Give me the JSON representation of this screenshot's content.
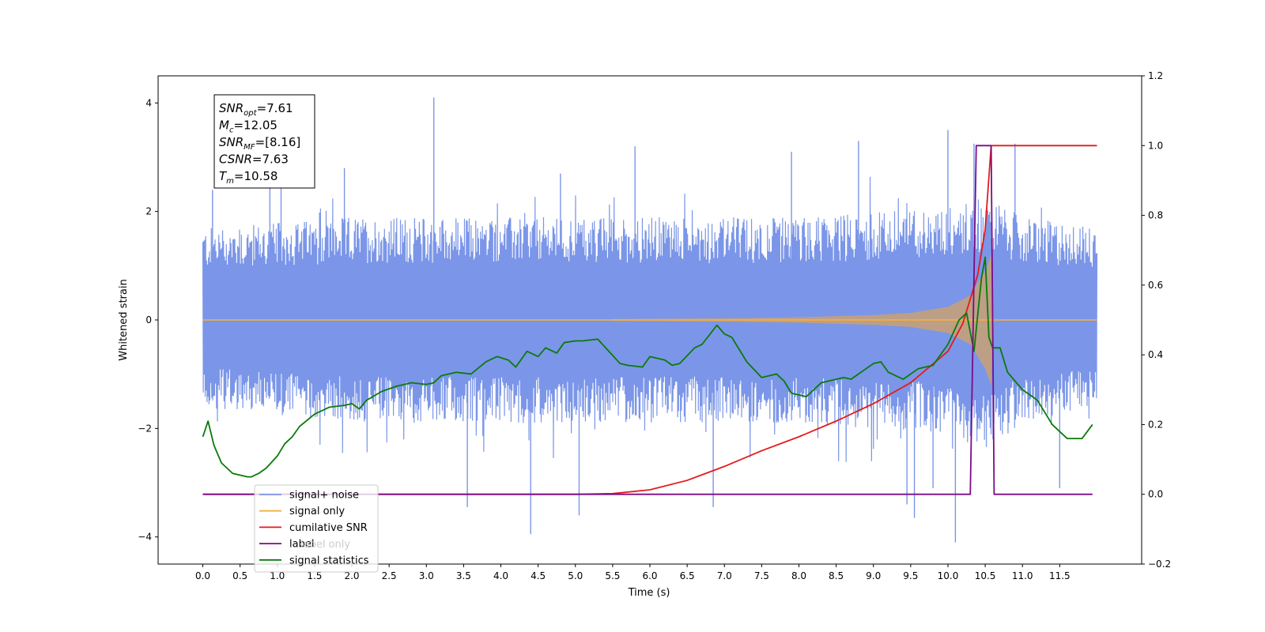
{
  "chart_data": {
    "type": "line",
    "xlabel": "Time (s)",
    "ylabel": "Whitened strain",
    "xlim": [
      -0.6,
      12.6
    ],
    "ylim": [
      -4.5,
      4.5
    ],
    "y2lim": [
      -0.2,
      1.2
    ],
    "x_ticks": [
      0.0,
      0.5,
      1.0,
      1.5,
      2.0,
      2.5,
      3.0,
      3.5,
      4.0,
      4.5,
      5.0,
      5.5,
      6.0,
      6.5,
      7.0,
      7.5,
      8.0,
      8.5,
      9.0,
      9.5,
      10.0,
      10.5,
      11.0,
      11.5
    ],
    "x_tick_labels": [
      "0.0",
      "0.5",
      "1.0",
      "1.5",
      "2.0",
      "2.5",
      "3.0",
      "3.5",
      "4.0",
      "4.5",
      "5.0",
      "5.5",
      "6.0",
      "6.5",
      "7.0",
      "7.5",
      "8.0",
      "8.5",
      "9.0",
      "9.5",
      "10.0",
      "10.5",
      "11.0",
      "11.5"
    ],
    "y_ticks": [
      -4,
      -2,
      0,
      2,
      4
    ],
    "y_tick_labels": [
      "−4",
      "−2",
      "0",
      "2",
      "4"
    ],
    "y2_ticks": [
      -0.2,
      0.0,
      0.2,
      0.4,
      0.6,
      0.8,
      1.0,
      1.2
    ],
    "y2_tick_labels": [
      "−0.2",
      "0.0",
      "0.2",
      "0.4",
      "0.6",
      "0.8",
      "1.0",
      "1.2"
    ],
    "grid": false,
    "legend_position": "lower-left",
    "annotation": {
      "lines": [
        {
          "sym": "SNR",
          "sub": "opt",
          "text": "=7.61"
        },
        {
          "sym": "M",
          "sub": "c",
          "text": "=12.05"
        },
        {
          "sym": "SNR",
          "sub": "MF",
          "text": "=[8.16]"
        },
        {
          "sym": "CSNR",
          "sub": "",
          "text": "=7.63"
        },
        {
          "sym": "T",
          "sub": "m",
          "text": "=10.58"
        }
      ]
    },
    "series": [
      {
        "name": "signal+ noise",
        "axis": "left",
        "color": "#7b96e8",
        "style": "noise-band",
        "x_range": [
          0.0,
          12.0
        ],
        "envelope_low": [
          [
            0.0,
            -1.6
          ],
          [
            2.0,
            -1.9
          ],
          [
            4.0,
            -1.9
          ],
          [
            6.0,
            -1.9
          ],
          [
            8.0,
            -1.9
          ],
          [
            10.0,
            -2.1
          ],
          [
            10.5,
            -2.4
          ],
          [
            11.0,
            -1.9
          ],
          [
            12.0,
            -1.6
          ]
        ],
        "envelope_high": [
          [
            0.0,
            1.7
          ],
          [
            2.0,
            1.9
          ],
          [
            4.0,
            1.9
          ],
          [
            6.0,
            1.9
          ],
          [
            8.0,
            1.9
          ],
          [
            10.0,
            2.1
          ],
          [
            10.5,
            2.3
          ],
          [
            11.0,
            1.9
          ],
          [
            12.0,
            1.7
          ]
        ],
        "spikes": [
          [
            0.13,
            2.4
          ],
          [
            0.12,
            -1.3
          ],
          [
            0.9,
            3.0
          ],
          [
            1.05,
            3.2
          ],
          [
            1.9,
            2.8
          ],
          [
            3.1,
            4.1
          ],
          [
            3.55,
            -3.45
          ],
          [
            4.4,
            -3.95
          ],
          [
            4.8,
            2.7
          ],
          [
            5.05,
            -3.6
          ],
          [
            5.8,
            3.2
          ],
          [
            6.85,
            -3.45
          ],
          [
            7.9,
            3.1
          ],
          [
            8.8,
            3.3
          ],
          [
            9.45,
            -3.4
          ],
          [
            9.55,
            -3.65
          ],
          [
            9.8,
            -3.1
          ],
          [
            10.0,
            3.5
          ],
          [
            10.1,
            -4.1
          ],
          [
            10.35,
            3.25
          ],
          [
            10.9,
            3.25
          ],
          [
            11.5,
            -3.1
          ]
        ]
      },
      {
        "name": "signal only",
        "axis": "left",
        "color": "#f5b041",
        "fill_color": "#c4a07a",
        "style": "chirp",
        "envelope": [
          [
            0.0,
            0.0
          ],
          [
            6.0,
            0.02
          ],
          [
            7.0,
            0.03
          ],
          [
            8.0,
            0.05
          ],
          [
            9.0,
            0.09
          ],
          [
            9.5,
            0.13
          ],
          [
            10.0,
            0.24
          ],
          [
            10.3,
            0.45
          ],
          [
            10.5,
            0.9
          ],
          [
            10.58,
            1.2
          ],
          [
            10.6,
            0.05
          ],
          [
            12.0,
            0.0
          ]
        ]
      },
      {
        "name": "cumilative SNR",
        "axis": "right",
        "color": "#e41a1c",
        "x": [
          0.0,
          5.0,
          5.5,
          6.0,
          6.5,
          7.0,
          7.5,
          8.0,
          8.5,
          9.0,
          9.5,
          10.0,
          10.2,
          10.4,
          10.5,
          10.55,
          10.58,
          11.0,
          12.0
        ],
        "values": [
          0.0,
          0.0,
          0.002,
          0.013,
          0.04,
          0.08,
          0.125,
          0.165,
          0.21,
          0.26,
          0.32,
          0.41,
          0.49,
          0.63,
          0.76,
          0.91,
          1.0,
          1.0,
          1.0
        ]
      },
      {
        "name": "label",
        "axis": "right",
        "color": "#7b0c86",
        "x": [
          0.0,
          10.3,
          10.38,
          10.58,
          10.62,
          11.94
        ],
        "values": [
          0.0,
          0.0,
          1.0,
          1.0,
          0.0,
          0.0
        ]
      },
      {
        "name": "label only",
        "axis": "right",
        "color": "#cccccc",
        "x": [],
        "values": []
      },
      {
        "name": "signal statistics",
        "axis": "right",
        "color": "#0a7a0a",
        "x": [
          0.0,
          0.07,
          0.15,
          0.25,
          0.4,
          0.6,
          0.65,
          0.75,
          0.85,
          1.0,
          1.1,
          1.2,
          1.3,
          1.5,
          1.7,
          1.9,
          2.0,
          2.1,
          2.2,
          2.4,
          2.6,
          2.8,
          3.0,
          3.1,
          3.2,
          3.4,
          3.6,
          3.8,
          3.95,
          4.1,
          4.2,
          4.35,
          4.5,
          4.6,
          4.75,
          4.85,
          5.0,
          5.1,
          5.3,
          5.45,
          5.6,
          5.7,
          5.9,
          6.0,
          6.2,
          6.3,
          6.4,
          6.6,
          6.7,
          6.9,
          7.0,
          7.1,
          7.3,
          7.5,
          7.7,
          7.8,
          7.9,
          8.1,
          8.3,
          8.6,
          8.7,
          9.0,
          9.1,
          9.2,
          9.4,
          9.6,
          9.8,
          10.0,
          10.15,
          10.25,
          10.35,
          10.45,
          10.5,
          10.55,
          10.6,
          10.7,
          10.8,
          11.0,
          11.2,
          11.4,
          11.6,
          11.8,
          11.94
        ],
        "values": [
          0.165,
          0.21,
          0.14,
          0.09,
          0.06,
          0.05,
          0.05,
          0.06,
          0.075,
          0.11,
          0.145,
          0.165,
          0.195,
          0.23,
          0.25,
          0.255,
          0.26,
          0.245,
          0.27,
          0.295,
          0.31,
          0.32,
          0.315,
          0.32,
          0.34,
          0.35,
          0.345,
          0.38,
          0.395,
          0.385,
          0.365,
          0.41,
          0.395,
          0.42,
          0.405,
          0.435,
          0.44,
          0.44,
          0.445,
          0.41,
          0.375,
          0.37,
          0.365,
          0.395,
          0.385,
          0.37,
          0.375,
          0.42,
          0.43,
          0.485,
          0.46,
          0.45,
          0.38,
          0.335,
          0.345,
          0.325,
          0.29,
          0.28,
          0.32,
          0.335,
          0.33,
          0.375,
          0.38,
          0.35,
          0.33,
          0.36,
          0.37,
          0.43,
          0.5,
          0.52,
          0.41,
          0.62,
          0.68,
          0.45,
          0.42,
          0.42,
          0.35,
          0.3,
          0.27,
          0.2,
          0.16,
          0.16,
          0.2
        ]
      }
    ]
  }
}
